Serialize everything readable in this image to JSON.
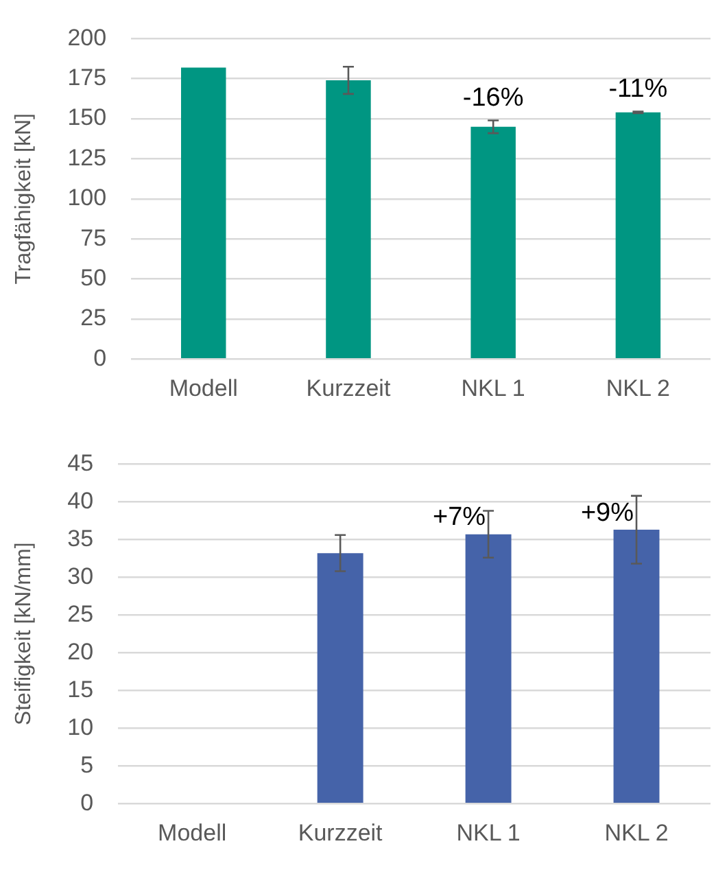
{
  "chart_data": [
    {
      "type": "bar",
      "ylabel": "Tragfähigkeit [kN]",
      "categories": [
        "Modell",
        "Kurzzeit",
        "NKL 1",
        "NKL 2"
      ],
      "values": [
        182,
        174,
        145,
        154
      ],
      "errors": [
        null,
        8.5,
        4,
        0.5
      ],
      "color": "#009682",
      "ylim": [
        0,
        200
      ],
      "yticks": [
        0,
        25,
        50,
        75,
        100,
        125,
        150,
        175,
        200
      ],
      "grid": "y",
      "legend": false,
      "annotations": [
        {
          "text": "-16%",
          "x": "NKL 1",
          "y": 145
        },
        {
          "text": "-11%",
          "x": "NKL 2",
          "y": 154
        }
      ]
    },
    {
      "type": "bar",
      "ylabel": "Steifigkeit [kN/mm]",
      "categories": [
        "Modell",
        "Kurzzeit",
        "NKL 1",
        "NKL 2"
      ],
      "values": [
        null,
        33.2,
        35.7,
        36.3
      ],
      "errors": [
        null,
        2.4,
        3.1,
        4.5
      ],
      "color": "#4563a9",
      "ylim": [
        0,
        45
      ],
      "yticks": [
        0,
        5,
        10,
        15,
        20,
        25,
        30,
        35,
        40,
        45
      ],
      "grid": "y",
      "legend": false,
      "annotations": [
        {
          "text": "+7%",
          "x": "NKL 1",
          "y": 35.7
        },
        {
          "text": "+9%",
          "x": "NKL 2",
          "y": 36.3
        }
      ]
    }
  ]
}
